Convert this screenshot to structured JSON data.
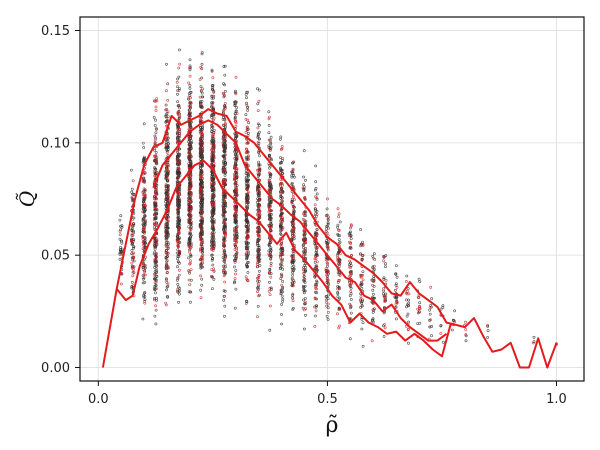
{
  "chart_data": {
    "type": "scatter",
    "title": "",
    "xlabel": "ρ̃",
    "ylabel": "Q̃",
    "xlim": [
      -0.04,
      1.06
    ],
    "ylim": [
      -0.006,
      0.156
    ],
    "x_ticks": [
      0.0,
      0.5,
      1.0
    ],
    "x_tick_labels": [
      "0.0",
      "0.5",
      "1.0"
    ],
    "y_ticks": [
      0.0,
      0.05,
      0.1,
      0.15
    ],
    "y_tick_labels": [
      "0.00",
      "0.05",
      "0.10",
      "0.15"
    ],
    "grid": true,
    "colors": {
      "points": "#333333",
      "points_accent": "#cc2222",
      "curves": "#e41a1c"
    },
    "scatter_density_profile": [
      {
        "x": 0.05,
        "y_low": 0.03,
        "y_high": 0.075,
        "count": 35
      },
      {
        "x": 0.075,
        "y_low": 0.02,
        "y_high": 0.095,
        "count": 90
      },
      {
        "x": 0.1,
        "y_low": 0.015,
        "y_high": 0.115,
        "count": 170
      },
      {
        "x": 0.125,
        "y_low": 0.01,
        "y_high": 0.13,
        "count": 230
      },
      {
        "x": 0.15,
        "y_low": 0.012,
        "y_high": 0.14,
        "count": 280
      },
      {
        "x": 0.175,
        "y_low": 0.015,
        "y_high": 0.145,
        "count": 320
      },
      {
        "x": 0.2,
        "y_low": 0.02,
        "y_high": 0.148,
        "count": 360
      },
      {
        "x": 0.225,
        "y_low": 0.02,
        "y_high": 0.148,
        "count": 360
      },
      {
        "x": 0.25,
        "y_low": 0.02,
        "y_high": 0.148,
        "count": 340
      },
      {
        "x": 0.275,
        "y_low": 0.018,
        "y_high": 0.145,
        "count": 300
      },
      {
        "x": 0.3,
        "y_low": 0.015,
        "y_high": 0.14,
        "count": 260
      },
      {
        "x": 0.325,
        "y_low": 0.015,
        "y_high": 0.135,
        "count": 230
      },
      {
        "x": 0.35,
        "y_low": 0.012,
        "y_high": 0.13,
        "count": 200
      },
      {
        "x": 0.375,
        "y_low": 0.012,
        "y_high": 0.125,
        "count": 180
      },
      {
        "x": 0.4,
        "y_low": 0.01,
        "y_high": 0.12,
        "count": 160
      },
      {
        "x": 0.425,
        "y_low": 0.01,
        "y_high": 0.11,
        "count": 140
      },
      {
        "x": 0.45,
        "y_low": 0.008,
        "y_high": 0.105,
        "count": 120
      },
      {
        "x": 0.475,
        "y_low": 0.008,
        "y_high": 0.095,
        "count": 100
      },
      {
        "x": 0.5,
        "y_low": 0.008,
        "y_high": 0.09,
        "count": 85
      },
      {
        "x": 0.525,
        "y_low": 0.006,
        "y_high": 0.085,
        "count": 70
      },
      {
        "x": 0.55,
        "y_low": 0.006,
        "y_high": 0.078,
        "count": 60
      },
      {
        "x": 0.575,
        "y_low": 0.005,
        "y_high": 0.072,
        "count": 50
      },
      {
        "x": 0.6,
        "y_low": 0.005,
        "y_high": 0.065,
        "count": 42
      },
      {
        "x": 0.625,
        "y_low": 0.005,
        "y_high": 0.06,
        "count": 35
      },
      {
        "x": 0.65,
        "y_low": 0.005,
        "y_high": 0.055,
        "count": 28
      },
      {
        "x": 0.675,
        "y_low": 0.005,
        "y_high": 0.05,
        "count": 22
      },
      {
        "x": 0.7,
        "y_low": 0.005,
        "y_high": 0.045,
        "count": 18
      },
      {
        "x": 0.725,
        "y_low": 0.005,
        "y_high": 0.04,
        "count": 14
      },
      {
        "x": 0.75,
        "y_low": 0.005,
        "y_high": 0.035,
        "count": 10
      },
      {
        "x": 0.775,
        "y_low": 0.008,
        "y_high": 0.03,
        "count": 8
      },
      {
        "x": 0.8,
        "y_low": 0.008,
        "y_high": 0.028,
        "count": 6
      },
      {
        "x": 0.85,
        "y_low": 0.01,
        "y_high": 0.022,
        "count": 4
      },
      {
        "x": 0.95,
        "y_low": 0.008,
        "y_high": 0.015,
        "count": 3
      },
      {
        "x": 1.0,
        "y_low": 0.008,
        "y_high": 0.014,
        "count": 2
      }
    ],
    "series": [
      {
        "points": [
          [
            0.01,
            0.0
          ],
          [
            0.04,
            0.035
          ],
          [
            0.06,
            0.055
          ],
          [
            0.08,
            0.075
          ],
          [
            0.1,
            0.09
          ],
          [
            0.12,
            0.098
          ],
          [
            0.14,
            0.1
          ],
          [
            0.16,
            0.112
          ],
          [
            0.18,
            0.108
          ],
          [
            0.2,
            0.11
          ],
          [
            0.22,
            0.112
          ],
          [
            0.24,
            0.115
          ],
          [
            0.26,
            0.113
          ],
          [
            0.28,
            0.112
          ],
          [
            0.3,
            0.105
          ],
          [
            0.32,
            0.103
          ],
          [
            0.34,
            0.1
          ],
          [
            0.36,
            0.095
          ],
          [
            0.38,
            0.09
          ],
          [
            0.4,
            0.085
          ],
          [
            0.42,
            0.08
          ],
          [
            0.44,
            0.075
          ],
          [
            0.46,
            0.07
          ],
          [
            0.48,
            0.063
          ],
          [
            0.5,
            0.058
          ],
          [
            0.52,
            0.055
          ],
          [
            0.54,
            0.05
          ],
          [
            0.56,
            0.048
          ],
          [
            0.58,
            0.045
          ],
          [
            0.6,
            0.042
          ],
          [
            0.62,
            0.038
          ],
          [
            0.64,
            0.033
          ],
          [
            0.66,
            0.032
          ],
          [
            0.68,
            0.038
          ],
          [
            0.7,
            0.033
          ],
          [
            0.72,
            0.03
          ],
          [
            0.74,
            0.027
          ],
          [
            0.76,
            0.02
          ],
          [
            0.78,
            0.019
          ],
          [
            0.8,
            0.018
          ],
          [
            0.82,
            0.022
          ],
          [
            0.84,
            0.014
          ],
          [
            0.86,
            0.007
          ],
          [
            0.88,
            0.008
          ],
          [
            0.9,
            0.011
          ],
          [
            0.92,
            0.0
          ],
          [
            0.94,
            0.0
          ],
          [
            0.96,
            0.013
          ],
          [
            0.98,
            0.0
          ],
          [
            1.0,
            0.011
          ]
        ]
      },
      {
        "points": [
          [
            0.04,
            0.035
          ],
          [
            0.06,
            0.03
          ],
          [
            0.075,
            0.032
          ],
          [
            0.09,
            0.045
          ],
          [
            0.11,
            0.055
          ],
          [
            0.13,
            0.062
          ],
          [
            0.15,
            0.07
          ],
          [
            0.17,
            0.08
          ],
          [
            0.19,
            0.085
          ],
          [
            0.21,
            0.09
          ],
          [
            0.23,
            0.092
          ],
          [
            0.25,
            0.088
          ],
          [
            0.27,
            0.08
          ],
          [
            0.29,
            0.076
          ],
          [
            0.31,
            0.072
          ],
          [
            0.33,
            0.068
          ],
          [
            0.35,
            0.065
          ],
          [
            0.37,
            0.06
          ],
          [
            0.39,
            0.055
          ],
          [
            0.41,
            0.06
          ],
          [
            0.43,
            0.052
          ],
          [
            0.45,
            0.048
          ],
          [
            0.47,
            0.043
          ],
          [
            0.49,
            0.038
          ],
          [
            0.51,
            0.032
          ],
          [
            0.53,
            0.028
          ],
          [
            0.55,
            0.02
          ],
          [
            0.57,
            0.024
          ],
          [
            0.59,
            0.02
          ],
          [
            0.61,
            0.018
          ],
          [
            0.63,
            0.015
          ],
          [
            0.65,
            0.016
          ],
          [
            0.67,
            0.012
          ],
          [
            0.69,
            0.015
          ],
          [
            0.71,
            0.012
          ],
          [
            0.73,
            0.008
          ],
          [
            0.75,
            0.005
          ],
          [
            0.77,
            0.02
          ]
        ]
      },
      {
        "points": [
          [
            0.12,
            0.08
          ],
          [
            0.14,
            0.09
          ],
          [
            0.16,
            0.095
          ],
          [
            0.18,
            0.1
          ],
          [
            0.2,
            0.105
          ],
          [
            0.22,
            0.108
          ],
          [
            0.24,
            0.11
          ],
          [
            0.26,
            0.108
          ],
          [
            0.28,
            0.104
          ],
          [
            0.3,
            0.1
          ],
          [
            0.32,
            0.09
          ],
          [
            0.34,
            0.085
          ],
          [
            0.36,
            0.08
          ],
          [
            0.38,
            0.075
          ],
          [
            0.4,
            0.072
          ],
          [
            0.42,
            0.068
          ],
          [
            0.44,
            0.065
          ],
          [
            0.46,
            0.06
          ],
          [
            0.48,
            0.055
          ],
          [
            0.5,
            0.05
          ],
          [
            0.52,
            0.045
          ],
          [
            0.54,
            0.04
          ],
          [
            0.56,
            0.038
          ],
          [
            0.58,
            0.032
          ],
          [
            0.6,
            0.03
          ],
          [
            0.62,
            0.025
          ],
          [
            0.64,
            0.028
          ],
          [
            0.66,
            0.022
          ],
          [
            0.68,
            0.018
          ],
          [
            0.7,
            0.015
          ],
          [
            0.72,
            0.012
          ],
          [
            0.74,
            0.012
          ],
          [
            0.76,
            0.015
          ]
        ]
      }
    ]
  }
}
